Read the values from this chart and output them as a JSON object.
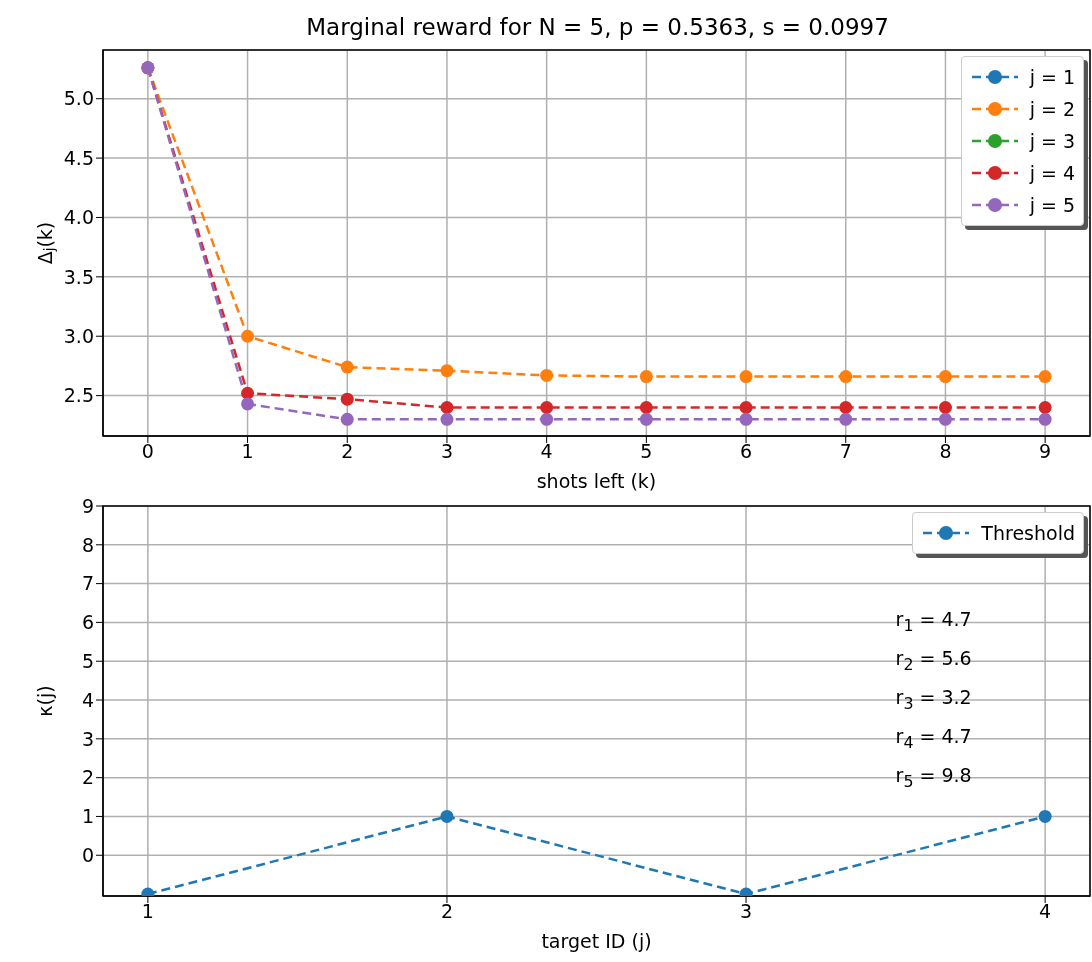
{
  "chart_data": [
    {
      "type": "line",
      "title": "Marginal reward for N = 5, p = 0.5363, s = 0.0997",
      "xlabel": "shots left (k)",
      "ylabel": "Δ$_{j}$(k)",
      "x": [
        0,
        1,
        2,
        3,
        4,
        5,
        6,
        7,
        8,
        9
      ],
      "series": [
        {
          "name": "j = 1",
          "color": "#1f77b4",
          "values": [
            null,
            null,
            null,
            null,
            null,
            null,
            null,
            null,
            null,
            null
          ]
        },
        {
          "name": "j = 2",
          "color": "#ff7f0e",
          "values": [
            5.26,
            3.0,
            2.74,
            2.71,
            2.67,
            2.66,
            2.66,
            2.66,
            2.66,
            2.66
          ]
        },
        {
          "name": "j = 3",
          "color": "#2ca02c",
          "values": [
            null,
            null,
            null,
            null,
            null,
            null,
            null,
            null,
            null,
            null
          ]
        },
        {
          "name": "j = 4",
          "color": "#d62728",
          "values": [
            5.26,
            2.52,
            2.47,
            2.4,
            2.4,
            2.4,
            2.4,
            2.4,
            2.4,
            2.4
          ]
        },
        {
          "name": "j = 5",
          "color": "#9467bd",
          "values": [
            5.26,
            2.43,
            2.3,
            2.3,
            2.3,
            2.3,
            2.3,
            2.3,
            2.3,
            2.3
          ]
        }
      ],
      "xlim": [
        -0.45,
        9.45
      ],
      "xticks": [
        0,
        1,
        2,
        3,
        4,
        5,
        6,
        7,
        8,
        9
      ],
      "ylim": [
        2.16,
        5.41
      ],
      "yticks": [
        2.5,
        {
          "value": 3,
          "label": "3.0"
        },
        3.5,
        {
          "value": 4,
          "label": "4.0"
        },
        4.5,
        {
          "value": 5,
          "label": "5.0"
        }
      ],
      "grid": true,
      "legend": "top right",
      "marker": "circle",
      "line_style": "dashed"
    },
    {
      "type": "line",
      "xlabel": "target ID (j)",
      "ylabel": "κ(j)",
      "x": [
        1,
        2,
        3,
        4
      ],
      "series": [
        {
          "name": "Threshold",
          "color": "#1f77b4",
          "values": [
            -1,
            1,
            -1,
            1
          ]
        }
      ],
      "xlim": [
        0.85,
        4.15
      ],
      "xticks": [
        1,
        2,
        3,
        4
      ],
      "ylim": [
        -1.05,
        9
      ],
      "yticks": [
        0,
        1,
        2,
        3,
        4,
        5,
        6,
        7,
        8,
        9
      ],
      "annotations": [
        "r$_{1}$ = 4.7",
        "r$_{2}$ = 5.6",
        "r$_{3}$ = 3.2",
        "r$_{4}$ = 4.7",
        "r$_{5}$ = 9.8"
      ],
      "grid": true,
      "legend": "top right",
      "marker": "circle",
      "line_style": "dashed"
    }
  ]
}
